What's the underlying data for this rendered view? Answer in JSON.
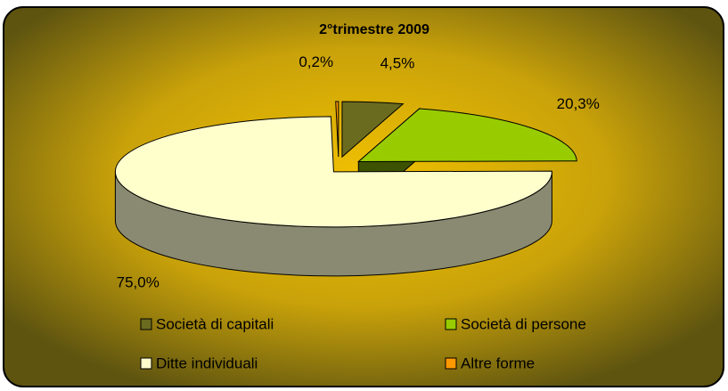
{
  "chart_data": {
    "type": "pie3d",
    "title": "2°trimestre 2009",
    "categories": [
      "Società di capitali",
      "Società di persone",
      "Ditte individuali",
      "Altre forme"
    ],
    "values": [
      4.5,
      20.3,
      75.0,
      0.2
    ],
    "value_labels": [
      "4,5%",
      "20,3%",
      "75,0%",
      "0,2%"
    ],
    "colors": [
      "#6b6b1f",
      "#99cc00",
      "#ffffcc",
      "#ff9900"
    ],
    "legend": "bottom"
  }
}
